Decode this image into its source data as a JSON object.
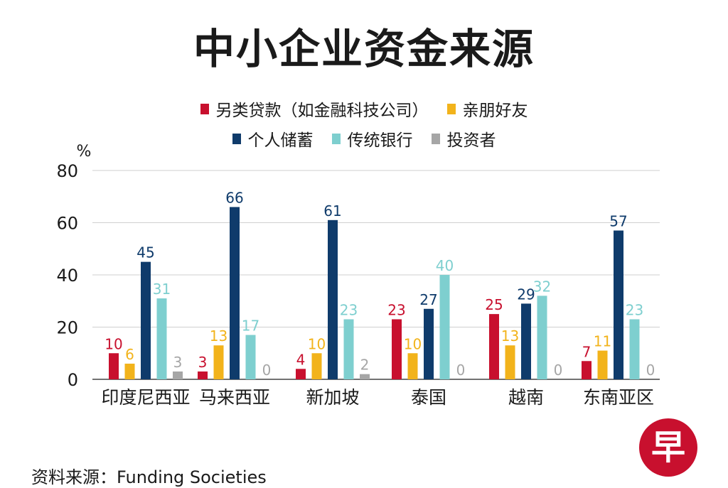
{
  "title": "中小企业资金来源",
  "source": "资料来源：Funding Societies",
  "logo_text": "早",
  "colors": {
    "logo": "#c8102e"
  },
  "chart_data": {
    "type": "bar",
    "title": "中小企业资金来源",
    "ylabel": "%",
    "ylim": [
      0,
      80
    ],
    "yticks": [
      0,
      20,
      40,
      60,
      80
    ],
    "grid": true,
    "legend_position": "top",
    "categories": [
      "印度尼西亚",
      "马来西亚",
      "新加坡",
      "泰国",
      "越南",
      "东南亚区"
    ],
    "series": [
      {
        "name": "另类贷款（如金融科技公司）",
        "color": "#c8102e",
        "values": [
          10,
          3,
          4,
          23,
          25,
          7
        ]
      },
      {
        "name": "亲朋好友",
        "color": "#f2b31b",
        "values": [
          6,
          13,
          10,
          10,
          13,
          11
        ]
      },
      {
        "name": "个人储蓄",
        "color": "#0f3b6b",
        "values": [
          45,
          66,
          61,
          27,
          29,
          57
        ]
      },
      {
        "name": "传统银行",
        "color": "#7ecfcf",
        "values": [
          31,
          17,
          23,
          40,
          32,
          23
        ]
      },
      {
        "name": "投资者",
        "color": "#a6a6a6",
        "values": [
          3,
          0,
          2,
          0,
          0,
          0
        ]
      }
    ]
  }
}
